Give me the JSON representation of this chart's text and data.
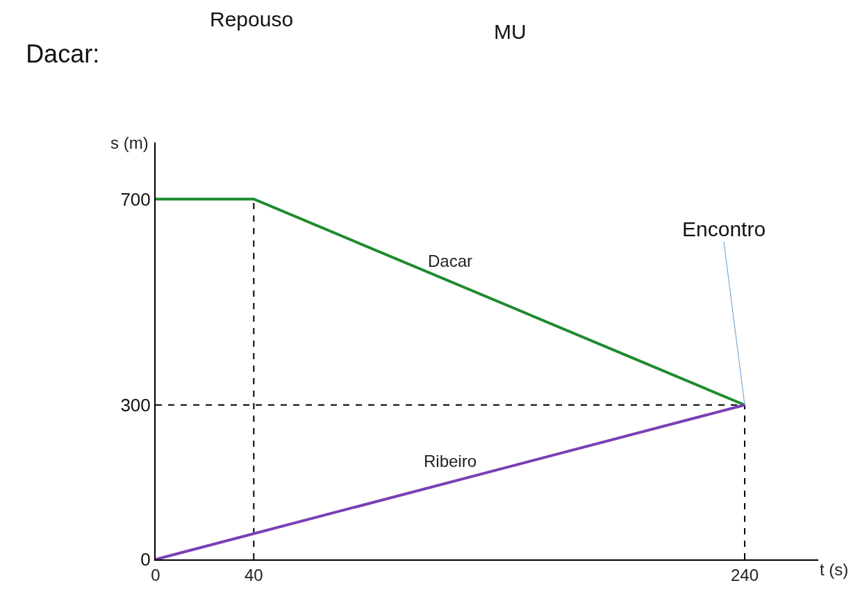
{
  "chart_data": {
    "type": "line",
    "title": "Dacar:",
    "xlabel": "t (s)",
    "ylabel": "s (m)",
    "series": [
      {
        "name": "Dacar",
        "color": "#1e8a2e",
        "x": [
          0,
          40,
          240
        ],
        "values": [
          700,
          700,
          300
        ]
      },
      {
        "name": "Ribeiro",
        "color": "#7a3fb5",
        "x": [
          0,
          240
        ],
        "values": [
          0,
          300
        ]
      }
    ],
    "xlim": [
      0,
      270
    ],
    "ylim": [
      0,
      810
    ],
    "xticks": [
      0,
      40,
      240
    ],
    "yticks": [
      0,
      300,
      700
    ],
    "ref_lines": [
      {
        "axis": "x",
        "value": 40,
        "line_style": "dashed",
        "color": "#000000"
      },
      {
        "axis": "x",
        "value": 240,
        "line_style": "dashed",
        "color": "#000000"
      },
      {
        "axis": "y",
        "value": 300,
        "line_style": "dashed",
        "color": "#000000"
      }
    ],
    "annotations": [
      {
        "text": "Encontro",
        "x": 240,
        "y": 300
      },
      "Repouso",
      "MU"
    ],
    "grid": false,
    "legend": false,
    "marker": "none",
    "line_style": "solid"
  }
}
